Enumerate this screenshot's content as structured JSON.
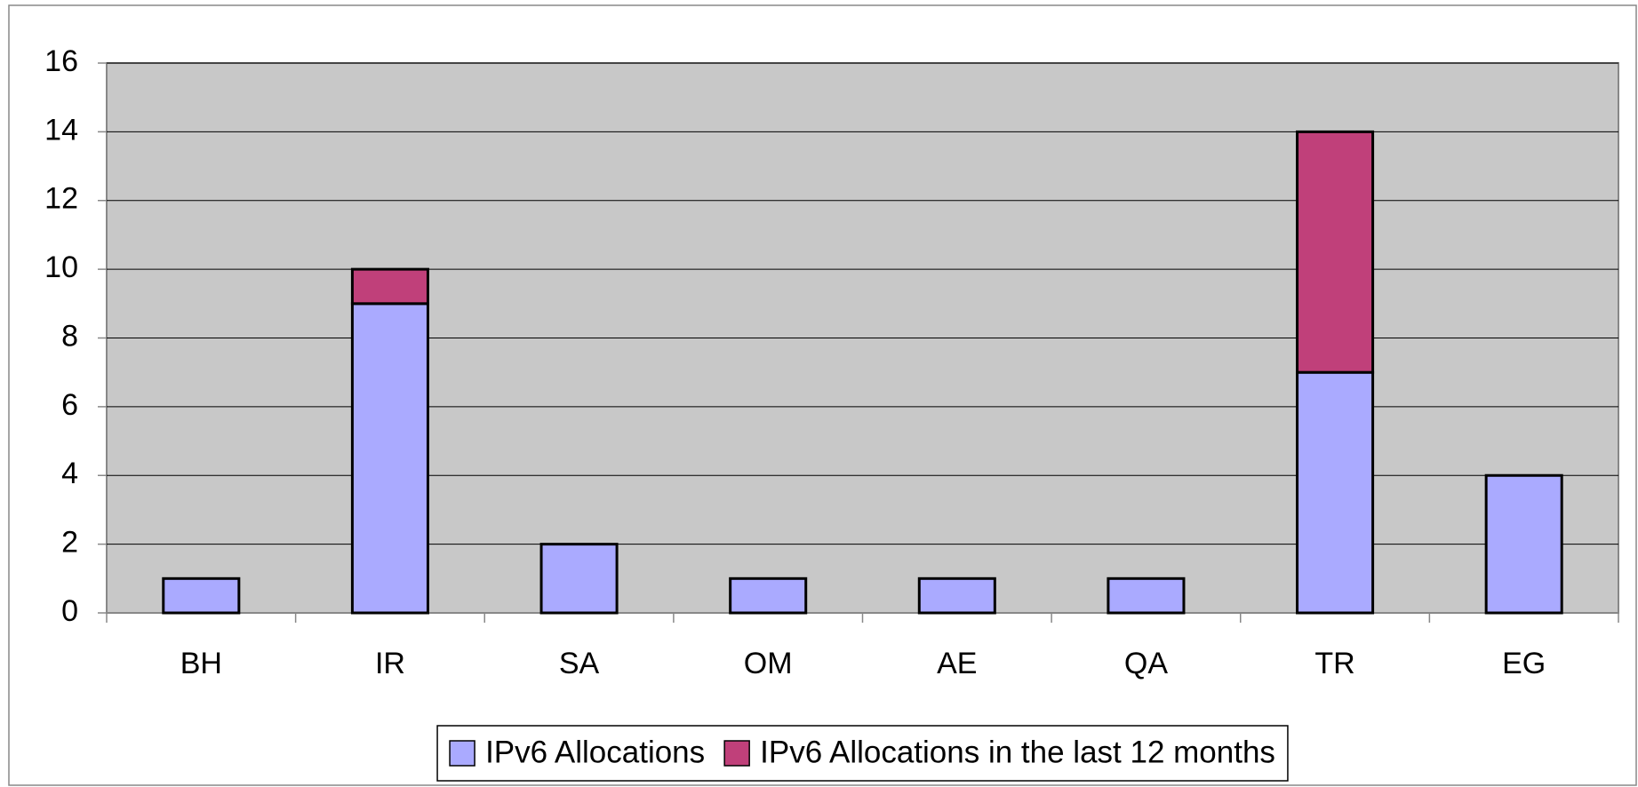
{
  "chart_data": {
    "type": "stacked_bar",
    "categories": [
      "BH",
      "IR",
      "SA",
      "OM",
      "AE",
      "QA",
      "TR",
      "EG"
    ],
    "series": [
      {
        "name": "IPv6 Allocations",
        "color": "#aaaaff",
        "values": [
          1,
          9,
          2,
          1,
          1,
          1,
          7,
          4
        ]
      },
      {
        "name": "IPv6 Allocations in the last 12 months",
        "color": "#c0407a",
        "values": [
          0,
          1,
          0,
          0,
          0,
          0,
          7,
          0
        ]
      }
    ],
    "ylim": [
      0,
      16
    ],
    "yticks": [
      0,
      2,
      4,
      6,
      8,
      10,
      12,
      14,
      16
    ],
    "grid": true,
    "legend": "bottom"
  }
}
